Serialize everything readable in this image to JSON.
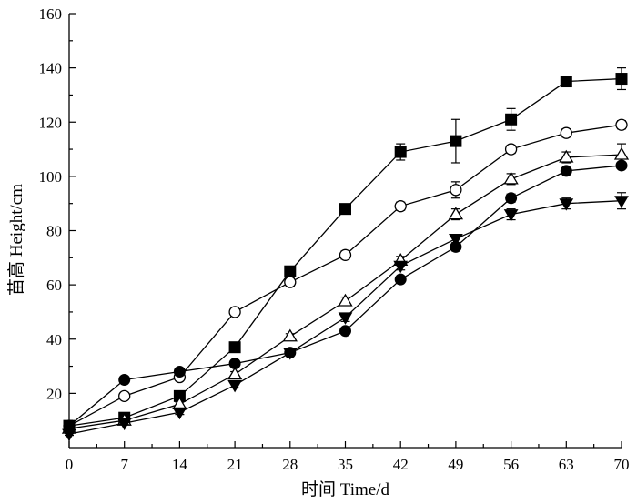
{
  "chart_data": {
    "type": "line",
    "xlabel": "时间 Time/d",
    "ylabel": "苗高 Height/cm",
    "x": [
      0,
      7,
      14,
      21,
      28,
      35,
      42,
      49,
      56,
      63,
      70
    ],
    "xticks": [
      "0",
      "7",
      "14",
      "21",
      "28",
      "35",
      "42",
      "49",
      "56",
      "63",
      "70"
    ],
    "yticks": [
      "20",
      "40",
      "60",
      "80",
      "100",
      "120",
      "140",
      "160"
    ],
    "xlim": [
      0,
      70
    ],
    "ylim": [
      0,
      160
    ],
    "grid": false,
    "legend": "none",
    "series": [
      {
        "marker": "square-filled",
        "values": [
          8,
          11,
          19,
          37,
          65,
          88,
          109,
          113,
          121,
          135,
          136
        ],
        "errors": [
          0.5,
          0.5,
          0.8,
          1,
          1.5,
          1.5,
          3,
          8,
          4,
          1,
          4
        ]
      },
      {
        "marker": "circle-open",
        "values": [
          8,
          19,
          26,
          50,
          61,
          71,
          89,
          95,
          110,
          116,
          119
        ],
        "errors": [
          0.5,
          0.5,
          1,
          1,
          1.5,
          1.5,
          1.5,
          3,
          1.5,
          1.5,
          1.5
        ]
      },
      {
        "marker": "triangle-up-open",
        "values": [
          7,
          10,
          16,
          27,
          41,
          54,
          69,
          86,
          99,
          107,
          108
        ],
        "errors": [
          0.5,
          0.5,
          0.8,
          1,
          1,
          1.5,
          1.5,
          2,
          2,
          2,
          4
        ]
      },
      {
        "marker": "circle-filled",
        "values": [
          8,
          25,
          28,
          31,
          35,
          43,
          62,
          74,
          92,
          102,
          104
        ],
        "errors": [
          0.5,
          0.5,
          1,
          1,
          1,
          1,
          1,
          1.5,
          1.5,
          1,
          1
        ]
      },
      {
        "marker": "triangle-down-filled",
        "values": [
          5,
          9,
          13,
          23,
          35,
          48,
          67,
          77,
          86,
          90,
          91
        ],
        "errors": [
          0.5,
          0.5,
          0.8,
          1,
          1,
          1.5,
          1.5,
          1.5,
          2,
          2,
          3
        ]
      }
    ]
  }
}
